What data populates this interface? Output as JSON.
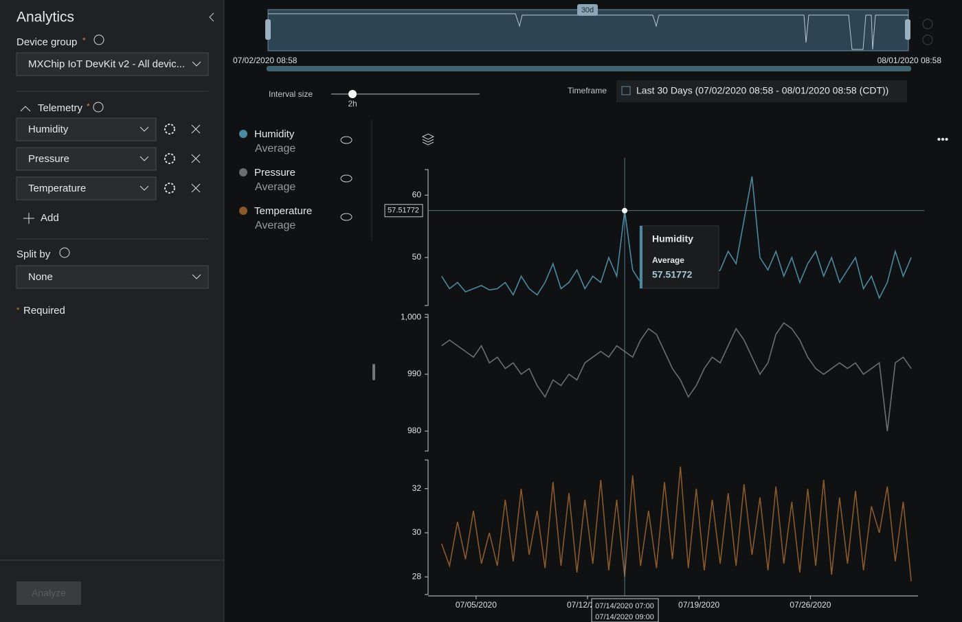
{
  "sidebar": {
    "title": "Analytics",
    "device_group_label": "Device group",
    "required_mark": "*",
    "device_group_value": "MXChip IoT DevKit v2 - All devic...",
    "telemetry_label": "Telemetry",
    "add": "Add",
    "split_by_label": "Split by",
    "split_by_value": "None",
    "required_note": "Required",
    "analyze": "Analyze"
  },
  "toolbar": {
    "brush_label": "30d",
    "range_start": "07/02/2020 08:58",
    "range_end": "08/01/2020 08:58",
    "interval_label": "Interval size",
    "interval_value": "2h",
    "timeframe_label": "Timeframe",
    "timeframe_value": "Last 30 Days (07/02/2020 08:58 - 08/01/2020 08:58 (CDT))"
  },
  "tooltip": {
    "time_start": "07/14/2020 07:00",
    "time_end": "07/14/2020 09:00"
  },
  "chart_data": {
    "type": "line",
    "aggregation": "Average",
    "xlim": [
      "07/02/2020 08:58",
      "08/01/2020 08:58"
    ],
    "xticks": [
      "07/05/2020",
      "07/12/2020",
      "07/19/2020",
      "07/26/2020"
    ],
    "x": [
      "07/02/2020 20:00",
      "07/03/2020 08:00",
      "07/03/2020 20:00",
      "07/04/2020 08:00",
      "07/04/2020 20:00",
      "07/05/2020 08:00",
      "07/05/2020 20:00",
      "07/06/2020 08:00",
      "07/06/2020 20:00",
      "07/07/2020 08:00",
      "07/07/2020 20:00",
      "07/08/2020 08:00",
      "07/08/2020 20:00",
      "07/09/2020 08:00",
      "07/09/2020 20:00",
      "07/10/2020 08:00",
      "07/10/2020 20:00",
      "07/11/2020 08:00",
      "07/11/2020 20:00",
      "07/12/2020 08:00",
      "07/12/2020 20:00",
      "07/13/2020 08:00",
      "07/13/2020 20:00",
      "07/14/2020 08:00",
      "07/14/2020 20:00",
      "07/15/2020 08:00",
      "07/15/2020 20:00",
      "07/16/2020 08:00",
      "07/16/2020 20:00",
      "07/17/2020 08:00",
      "07/17/2020 20:00",
      "07/18/2020 08:00",
      "07/18/2020 20:00",
      "07/19/2020 08:00",
      "07/19/2020 20:00",
      "07/20/2020 08:00",
      "07/20/2020 20:00",
      "07/21/2020 08:00",
      "07/21/2020 20:00",
      "07/22/2020 08:00",
      "07/22/2020 20:00",
      "07/23/2020 08:00",
      "07/23/2020 20:00",
      "07/24/2020 08:00",
      "07/24/2020 20:00",
      "07/25/2020 08:00",
      "07/25/2020 20:00",
      "07/26/2020 08:00",
      "07/26/2020 20:00",
      "07/27/2020 08:00",
      "07/27/2020 20:00",
      "07/28/2020 08:00",
      "07/28/2020 20:00",
      "07/29/2020 08:00",
      "07/29/2020 20:00",
      "07/30/2020 08:00",
      "07/30/2020 20:00",
      "07/31/2020 08:00",
      "07/31/2020 20:00",
      "08/01/2020 08:00"
    ],
    "series": [
      {
        "name": "Humidity",
        "color": "#4b8ba1",
        "ylim": [
          42.3,
          64.1
        ],
        "yticks": [
          50,
          60
        ],
        "values": [
          47,
          45,
          46,
          44.5,
          45,
          45.5,
          44.8,
          45,
          46,
          44,
          47,
          45,
          44,
          46,
          49,
          45,
          46,
          48,
          45,
          47,
          46,
          50,
          47,
          57.51772,
          48,
          46,
          47,
          50,
          48,
          49,
          47,
          49,
          46,
          50,
          47,
          48,
          51,
          49,
          56,
          63,
          50,
          48,
          51,
          47,
          50,
          46,
          49,
          51,
          47,
          50,
          46,
          48,
          50,
          45,
          47,
          43.5,
          46,
          51,
          47,
          50
        ]
      },
      {
        "name": "Pressure",
        "color": "#6e6e6e",
        "ylim": [
          976.5,
          1000.5
        ],
        "yticks": [
          {
            "value": 1000,
            "label": "1,000"
          },
          990,
          980
        ],
        "values": [
          995,
          996,
          995,
          994,
          993,
          995,
          992,
          993,
          991,
          992,
          990,
          991,
          988,
          986,
          989,
          988,
          990,
          989,
          992,
          993,
          994,
          993,
          995,
          994,
          993,
          996,
          998,
          997,
          994,
          991,
          989,
          986,
          988,
          991,
          993,
          992,
          995,
          998,
          996,
          993,
          990,
          992,
          997,
          999,
          998,
          996,
          993,
          991,
          990,
          991,
          992,
          991,
          992,
          990,
          991,
          992,
          980,
          992,
          993,
          991
        ]
      },
      {
        "name": "Temperature",
        "color": "#8a5a2c",
        "ylim": [
          27.2,
          33.3
        ],
        "yticks": [
          28,
          30,
          32
        ],
        "values": [
          29.5,
          28.5,
          30.5,
          28.8,
          31,
          28.6,
          30,
          28.5,
          31.5,
          28.7,
          32,
          29,
          31,
          28.4,
          32.3,
          28.5,
          31.8,
          28.2,
          31.5,
          28.6,
          32.4,
          28.3,
          31.5,
          28,
          32.6,
          28.5,
          31,
          28.4,
          32.3,
          28.8,
          33,
          28.4,
          32,
          28.3,
          31.5,
          28.6,
          31.8,
          28.5,
          32.2,
          29,
          31.6,
          28.3,
          32.1,
          28.6,
          31.4,
          28.2,
          32,
          28.5,
          32.4,
          28.1,
          31.6,
          28.6,
          31.9,
          28.3,
          31.2,
          30,
          32.1,
          28.7,
          31.4,
          27.8
        ]
      }
    ]
  }
}
